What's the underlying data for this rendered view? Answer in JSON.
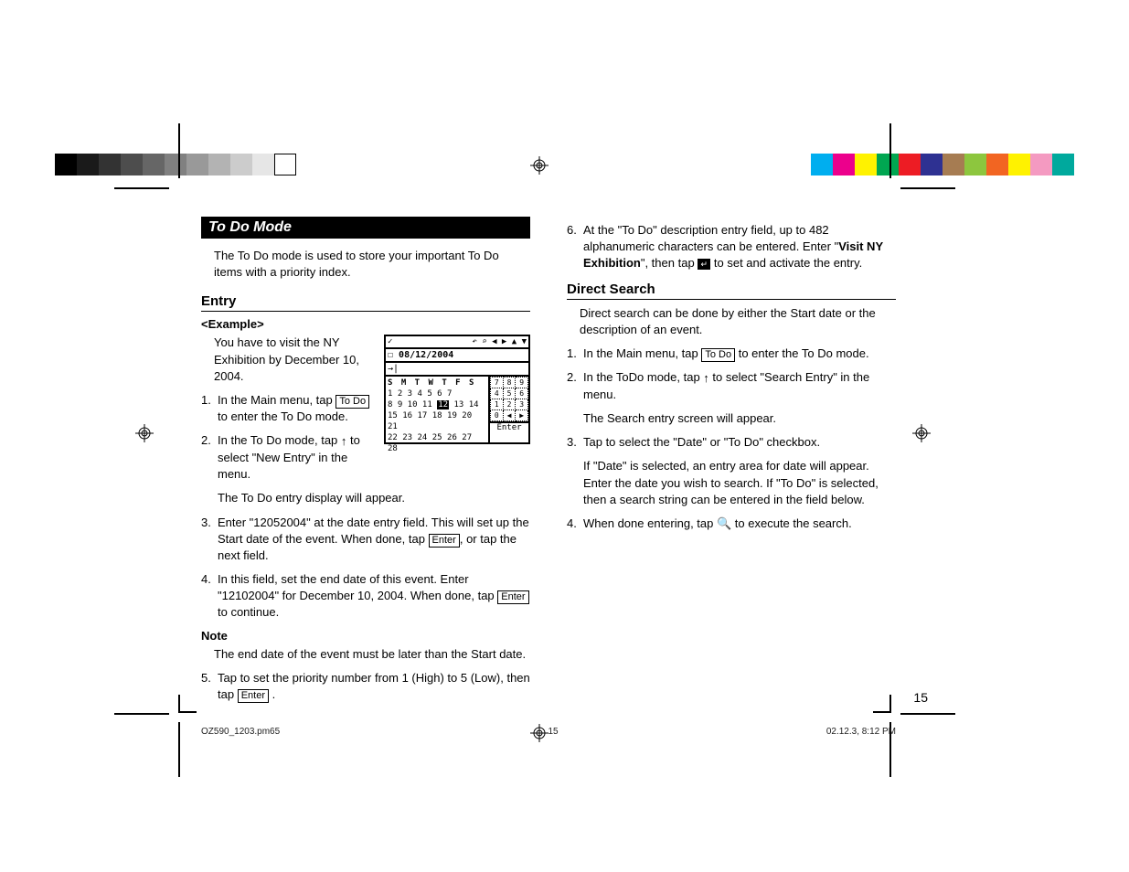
{
  "colorbar_left": [
    "#000000",
    "#1a1a1a",
    "#333333",
    "#4d4d4d",
    "#666666",
    "#808080",
    "#999999",
    "#b3b3b3",
    "#cccccc",
    "#e6e6e6",
    "#ffffff"
  ],
  "colorbar_right": [
    "#00aeef",
    "#ec008c",
    "#fff200",
    "#00a651",
    "#ed1c24",
    "#2e3192",
    "#a67c52",
    "#8dc63e",
    "#f26522",
    "#fff200",
    "#f49ac1",
    "#00a99d"
  ],
  "section_header": "To Do Mode",
  "intro": "The To Do mode is used to store your important To Do items with a priority index.",
  "entry_heading": "Entry",
  "example_label": "<Example>",
  "example_text": "You have to visit the NY Exhibition by December 10, 2004.",
  "steps_left": [
    {
      "n": "1.",
      "pre": "In the Main menu, tap ",
      "key": "To Do",
      "post": " to enter the To Do mode."
    },
    {
      "n": "2.",
      "pre": "In the To Do mode, tap ",
      "icon": "↑",
      "post": " to select \"New Entry\" in the menu."
    }
  ],
  "substep_2": "The To Do entry display will appear.",
  "step3_pre": "Enter \"12052004\" at the date entry field. This will set up the Start date of the event. When done, tap ",
  "step3_key": "Enter",
  "step3_post": ", or tap the next field.",
  "step4_pre": "In this field, set the end date of this event. Enter \"12102004\" for December 10, 2004. When done, tap ",
  "step4_key": "Enter",
  "step4_post": " to continue.",
  "note_label": "Note",
  "note_text": "The end date of the event must be later than the Start date.",
  "step5_pre": "Tap to set the priority number from 1 (High) to 5 (Low), then tap ",
  "step5_key": "Enter",
  "step5_post": "   .",
  "step6_pre": "At the \"To Do\" description entry field, up to 482 alphanumeric characters can be entered. Enter \"",
  "step6_bold": "Visit NY Exhibition",
  "step6_mid": "\", then tap ",
  "step6_post": " to set and activate the entry.",
  "direct_search_heading": "Direct Search",
  "ds_intro": "Direct search can be done by either the Start date or the description of an event.",
  "ds_steps": [
    {
      "n": "1.",
      "pre": "In the Main menu, tap ",
      "key": "To Do",
      "post": " to enter the To Do mode."
    },
    {
      "n": "2.",
      "pre": "In the ToDo mode, tap ",
      "icon": "↑",
      "post": " to select \"Search Entry\" in the menu."
    }
  ],
  "ds_sub2": "The Search entry screen will appear.",
  "ds_step3": "Tap to select the \"Date\" or \"To Do\" checkbox.",
  "ds_sub3": "If \"Date\" is selected, an entry area for date will appear. Enter the date you wish to search. If \"To Do\" is selected, then a search string can be entered in the field below.",
  "ds_step4_pre": "When done entering, tap ",
  "ds_step4_post": " to execute the search.",
  "screenshot": {
    "titlebar_icons": "↶ ⌕ ◀ ▶ ▲ ▼",
    "date": "08/12/2004",
    "tab": "→|",
    "daynames": "S M T W T F S",
    "weeks": [
      "1  2  3  4  5  6  7",
      "8  9 10 11 12 13 14",
      "15 16 17 18 19 20 21",
      "22 23 24 25 26 27 28"
    ],
    "highlight_day": "12",
    "keypad": [
      [
        "7",
        "8",
        "9"
      ],
      [
        "4",
        "5",
        "6"
      ],
      [
        "1",
        "2",
        "3"
      ],
      [
        "0",
        "◀",
        "▶"
      ]
    ],
    "enter_label": "Enter"
  },
  "page_number": "15",
  "footer_file": "OZ590_1203.pm65",
  "footer_page": "15",
  "footer_ts": "02.12.3, 8:12 PM"
}
